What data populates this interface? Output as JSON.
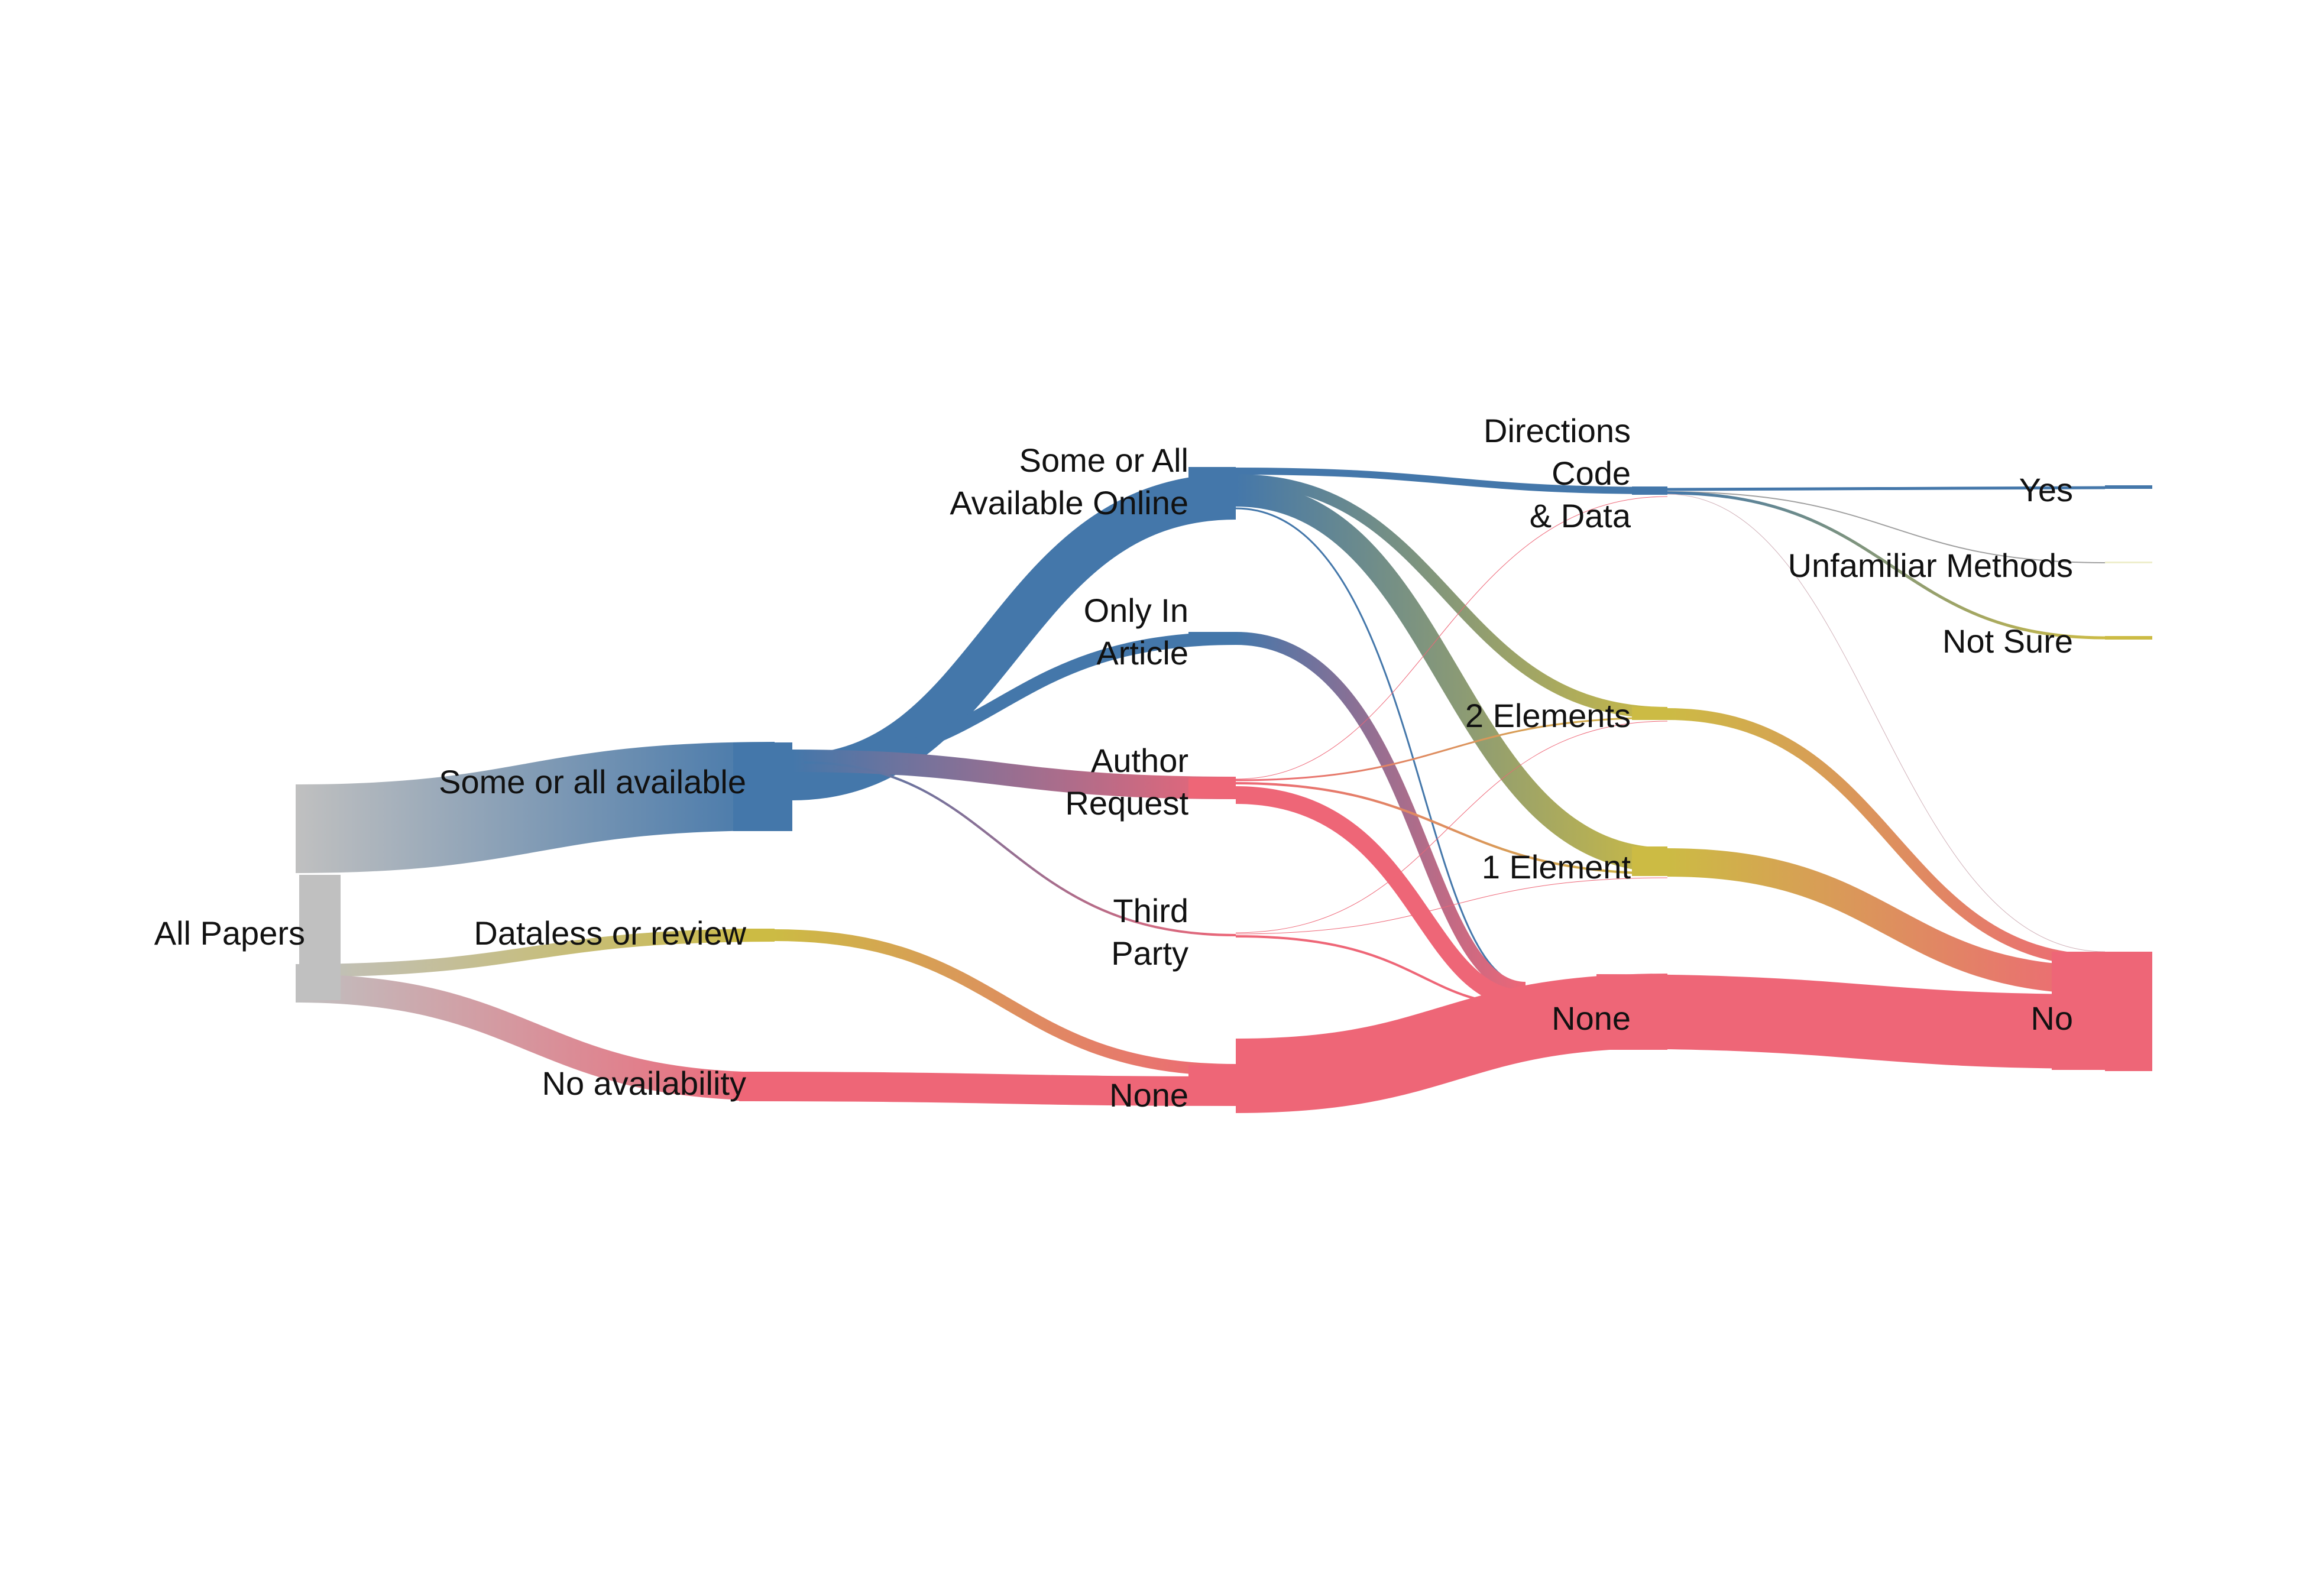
{
  "diagram": {
    "type": "alluvial",
    "colors": {
      "source": "#c0c0c0",
      "available": "#4477aa",
      "dataless": "#ccbb44",
      "none": "#ee6677",
      "unfamiliar": "#eeeecc"
    },
    "nodes": {
      "all_papers": {
        "label": "All Papers"
      },
      "some_or_all_available": {
        "label": "Some or all available"
      },
      "dataless_or_review": {
        "label": "Dataless or review"
      },
      "no_availability": {
        "label": "No availability"
      },
      "online": {
        "label_line1": "Some or All",
        "label_line2": "Available Online"
      },
      "only_in_article": {
        "label_line1": "Only In",
        "label_line2": "Article"
      },
      "author_request": {
        "label_line1": "Author",
        "label_line2": "Request"
      },
      "third_party": {
        "label_line1": "Third",
        "label_line2": "Party"
      },
      "none_stage2": {
        "label": "None"
      },
      "directions_code_data": {
        "label_line1": "Directions",
        "label_line2": "Code",
        "label_line3": "& Data"
      },
      "two_elements": {
        "label": "2 Elements"
      },
      "one_element": {
        "label": "1 Element"
      },
      "none_stage3": {
        "label": "None"
      },
      "yes": {
        "label": "Yes"
      },
      "unfamiliar_methods": {
        "label": "Unfamiliar Methods"
      },
      "not_sure": {
        "label": "Not Sure"
      },
      "no": {
        "label": "No"
      }
    }
  }
}
